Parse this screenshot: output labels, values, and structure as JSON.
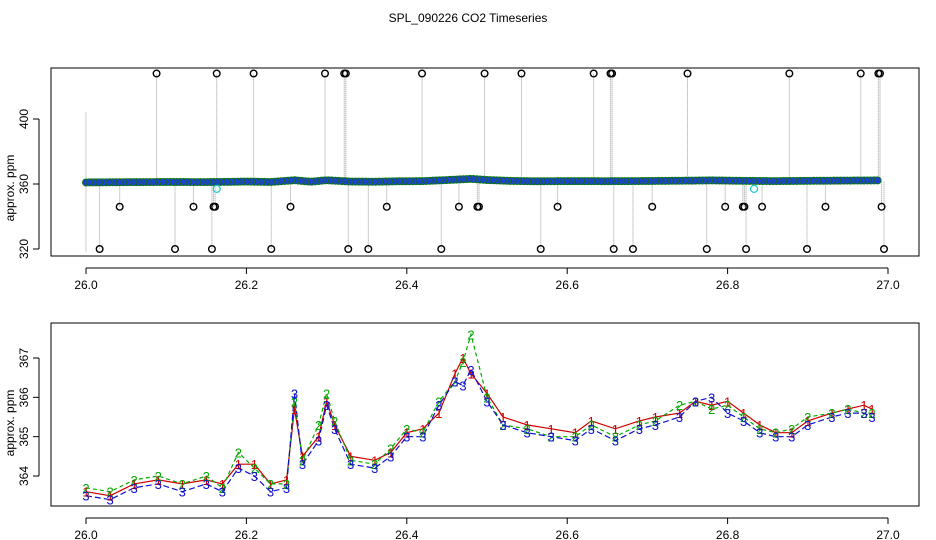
{
  "chart_data": [
    {
      "type": "scatter",
      "title": "SPL_090226  CO2 Timeseries",
      "xlabel": "",
      "ylabel": "approx. ppm",
      "xlim": [
        26.0,
        27.0
      ],
      "ylim": [
        316,
        430
      ],
      "x_ticks": [
        "26.0",
        "26.2",
        "26.4",
        "26.6",
        "26.8",
        "27.0"
      ],
      "y_ticks": [
        "320",
        "360",
        "400"
      ],
      "grid": false,
      "colors": {
        "main": "#1f3fd0",
        "main_edge": "#0a7a0a",
        "cyan": "#22cccc",
        "outlier": "#000000",
        "lines": "#999999"
      },
      "series": [
        {
          "values": [
            [
              26.0,
              363.5
            ],
            [
              26.05,
              363.8
            ],
            [
              26.1,
              364.0
            ],
            [
              26.15,
              363.9
            ],
            [
              26.18,
              364.2
            ],
            [
              26.2,
              364.5
            ],
            [
              26.23,
              364.0
            ],
            [
              26.26,
              366.0
            ],
            [
              26.28,
              364.3
            ],
            [
              26.3,
              366.0
            ],
            [
              26.33,
              364.5
            ],
            [
              26.36,
              364.3
            ],
            [
              26.39,
              364.8
            ],
            [
              26.42,
              365.0
            ],
            [
              26.45,
              366.2
            ],
            [
              26.48,
              367.5
            ],
            [
              26.5,
              366.2
            ],
            [
              26.53,
              365.2
            ],
            [
              26.56,
              364.8
            ],
            [
              26.6,
              365.0
            ],
            [
              26.65,
              364.9
            ],
            [
              26.7,
              365.1
            ],
            [
              26.75,
              365.5
            ],
            [
              26.78,
              365.8
            ],
            [
              26.82,
              365.3
            ],
            [
              26.86,
              365.0
            ],
            [
              26.9,
              365.3
            ],
            [
              26.95,
              365.6
            ],
            [
              26.99,
              365.8
            ]
          ]
        },
        {
          "values": [
            [
              26.163,
              357
            ],
            [
              26.833,
              357
            ]
          ]
        },
        {
          "values": [
            [
              26.017,
              320
            ],
            [
              26.042,
              346
            ],
            [
              26.088,
              428
            ],
            [
              26.111,
              320
            ],
            [
              26.134,
              346
            ],
            [
              26.157,
              320
            ],
            [
              26.159,
              346
            ],
            [
              26.161,
              346
            ],
            [
              26.163,
              428
            ],
            [
              26.209,
              428
            ],
            [
              26.231,
              320
            ],
            [
              26.255,
              346
            ],
            [
              26.298,
              428
            ],
            [
              26.322,
              428
            ],
            [
              26.324,
              428
            ],
            [
              26.327,
              320
            ],
            [
              26.352,
              320
            ],
            [
              26.375,
              346
            ],
            [
              26.419,
              428
            ],
            [
              26.443,
              320
            ],
            [
              26.465,
              346
            ],
            [
              26.488,
              346
            ],
            [
              26.49,
              346
            ],
            [
              26.497,
              428
            ],
            [
              26.543,
              428
            ],
            [
              26.567,
              320
            ],
            [
              26.588,
              346
            ],
            [
              26.633,
              428
            ],
            [
              26.654,
              428
            ],
            [
              26.656,
              428
            ],
            [
              26.658,
              320
            ],
            [
              26.682,
              320
            ],
            [
              26.706,
              346
            ],
            [
              26.75,
              428
            ],
            [
              26.774,
              320
            ],
            [
              26.797,
              346
            ],
            [
              26.819,
              346
            ],
            [
              26.821,
              346
            ],
            [
              26.823,
              320
            ],
            [
              26.843,
              346
            ],
            [
              26.877,
              428
            ],
            [
              26.899,
              320
            ],
            [
              26.922,
              346
            ],
            [
              26.966,
              428
            ],
            [
              26.988,
              428
            ],
            [
              26.99,
              428
            ],
            [
              26.992,
              346
            ],
            [
              26.995,
              320
            ]
          ]
        }
      ]
    },
    {
      "type": "scatter",
      "title": "",
      "xlabel": "",
      "ylabel": "approx. ppm",
      "xlim": [
        26.0,
        27.0
      ],
      "ylim": [
        363.3,
        367.8
      ],
      "x_ticks": [
        "26.0",
        "26.2",
        "26.4",
        "26.6",
        "26.8",
        "27.0"
      ],
      "y_ticks": [
        "364",
        "365",
        "366",
        "367"
      ],
      "grid": false,
      "marker_glyphs": [
        "1",
        "2",
        "3"
      ],
      "colors": {
        "s1": "#cc0000",
        "s2": "#00aa00",
        "s3": "#1010cc"
      },
      "series": [
        {
          "values": [
            [
              26.0,
              363.6
            ],
            [
              26.03,
              363.5
            ],
            [
              26.06,
              363.8
            ],
            [
              26.09,
              363.9
            ],
            [
              26.12,
              363.8
            ],
            [
              26.15,
              363.9
            ],
            [
              26.17,
              363.8
            ],
            [
              26.19,
              364.3
            ],
            [
              26.21,
              364.3
            ],
            [
              26.23,
              363.8
            ],
            [
              26.25,
              363.9
            ],
            [
              26.26,
              365.7
            ],
            [
              26.27,
              364.5
            ],
            [
              26.29,
              365.0
            ],
            [
              26.3,
              365.9
            ],
            [
              26.31,
              365.3
            ],
            [
              26.33,
              364.5
            ],
            [
              26.36,
              364.4
            ],
            [
              26.38,
              364.6
            ],
            [
              26.4,
              365.1
            ],
            [
              26.42,
              365.2
            ],
            [
              26.44,
              365.6
            ],
            [
              26.46,
              366.6
            ],
            [
              26.47,
              367.0
            ],
            [
              26.48,
              366.6
            ],
            [
              26.5,
              366.1
            ],
            [
              26.52,
              365.5
            ],
            [
              26.55,
              365.3
            ],
            [
              26.58,
              365.2
            ],
            [
              26.61,
              365.1
            ],
            [
              26.63,
              365.4
            ],
            [
              26.66,
              365.2
            ],
            [
              26.69,
              365.4
            ],
            [
              26.71,
              365.5
            ],
            [
              26.74,
              365.6
            ],
            [
              26.76,
              365.9
            ],
            [
              26.78,
              365.8
            ],
            [
              26.8,
              365.9
            ],
            [
              26.82,
              365.6
            ],
            [
              26.84,
              365.3
            ],
            [
              26.86,
              365.1
            ],
            [
              26.88,
              365.1
            ],
            [
              26.9,
              365.4
            ],
            [
              26.93,
              365.6
            ],
            [
              26.95,
              365.7
            ],
            [
              26.97,
              365.8
            ],
            [
              26.98,
              365.7
            ]
          ]
        },
        {
          "values": [
            [
              26.0,
              363.7
            ],
            [
              26.03,
              363.6
            ],
            [
              26.06,
              363.9
            ],
            [
              26.09,
              364.0
            ],
            [
              26.12,
              363.8
            ],
            [
              26.15,
              364.0
            ],
            [
              26.17,
              363.7
            ],
            [
              26.19,
              364.6
            ],
            [
              26.21,
              364.2
            ],
            [
              26.23,
              363.8
            ],
            [
              26.25,
              363.8
            ],
            [
              26.26,
              365.9
            ],
            [
              26.27,
              364.4
            ],
            [
              26.29,
              365.3
            ],
            [
              26.3,
              366.1
            ],
            [
              26.31,
              365.4
            ],
            [
              26.33,
              364.4
            ],
            [
              26.36,
              364.3
            ],
            [
              26.38,
              364.7
            ],
            [
              26.4,
              365.2
            ],
            [
              26.42,
              365.1
            ],
            [
              26.44,
              365.9
            ],
            [
              26.46,
              366.4
            ],
            [
              26.47,
              366.9
            ],
            [
              26.48,
              367.6
            ],
            [
              26.5,
              366.0
            ],
            [
              26.52,
              365.3
            ],
            [
              26.55,
              365.2
            ],
            [
              26.58,
              365.0
            ],
            [
              26.61,
              365.0
            ],
            [
              26.63,
              365.3
            ],
            [
              26.66,
              365.0
            ],
            [
              26.69,
              365.3
            ],
            [
              26.71,
              365.4
            ],
            [
              26.74,
              365.8
            ],
            [
              26.76,
              365.9
            ],
            [
              26.78,
              365.7
            ],
            [
              26.8,
              365.8
            ],
            [
              26.82,
              365.5
            ],
            [
              26.84,
              365.2
            ],
            [
              26.86,
              365.1
            ],
            [
              26.88,
              365.2
            ],
            [
              26.9,
              365.5
            ],
            [
              26.93,
              365.6
            ],
            [
              26.95,
              365.7
            ],
            [
              26.97,
              365.6
            ],
            [
              26.98,
              365.6
            ]
          ]
        },
        {
          "values": [
            [
              26.0,
              363.5
            ],
            [
              26.03,
              363.4
            ],
            [
              26.06,
              363.7
            ],
            [
              26.09,
              363.8
            ],
            [
              26.12,
              363.6
            ],
            [
              26.15,
              363.8
            ],
            [
              26.17,
              363.6
            ],
            [
              26.19,
              364.2
            ],
            [
              26.21,
              364.0
            ],
            [
              26.23,
              363.6
            ],
            [
              26.25,
              363.7
            ],
            [
              26.26,
              366.1
            ],
            [
              26.27,
              364.3
            ],
            [
              26.29,
              364.9
            ],
            [
              26.3,
              365.8
            ],
            [
              26.31,
              365.2
            ],
            [
              26.33,
              364.3
            ],
            [
              26.36,
              364.2
            ],
            [
              26.38,
              364.5
            ],
            [
              26.4,
              365.0
            ],
            [
              26.42,
              365.0
            ],
            [
              26.44,
              365.8
            ],
            [
              26.46,
              366.4
            ],
            [
              26.47,
              366.3
            ],
            [
              26.48,
              366.7
            ],
            [
              26.5,
              365.9
            ],
            [
              26.52,
              365.3
            ],
            [
              26.55,
              365.1
            ],
            [
              26.58,
              365.0
            ],
            [
              26.61,
              364.9
            ],
            [
              26.63,
              365.2
            ],
            [
              26.66,
              364.9
            ],
            [
              26.69,
              365.2
            ],
            [
              26.71,
              365.3
            ],
            [
              26.74,
              365.5
            ],
            [
              26.76,
              365.9
            ],
            [
              26.78,
              366.0
            ],
            [
              26.8,
              365.6
            ],
            [
              26.82,
              365.4
            ],
            [
              26.84,
              365.1
            ],
            [
              26.86,
              365.0
            ],
            [
              26.88,
              365.0
            ],
            [
              26.9,
              365.3
            ],
            [
              26.93,
              365.5
            ],
            [
              26.95,
              365.6
            ],
            [
              26.97,
              365.6
            ],
            [
              26.98,
              365.5
            ]
          ]
        }
      ]
    }
  ]
}
